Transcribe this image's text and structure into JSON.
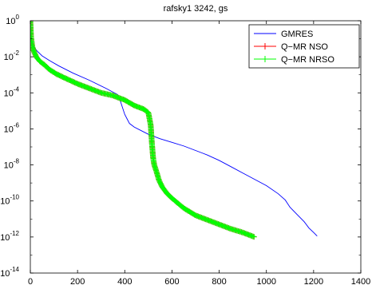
{
  "chart_data": {
    "type": "line",
    "title": "rafsky1 3242, gs",
    "xlabel": "",
    "ylabel": "",
    "xlim": [
      0,
      1400
    ],
    "ylim_log10": [
      -14,
      0
    ],
    "y_scale": "log",
    "grid": false,
    "legend_position": "top-right",
    "x_ticks": [
      0,
      200,
      400,
      600,
      800,
      1000,
      1200,
      1400
    ],
    "x_tick_labels": [
      "0",
      "200",
      "400",
      "600",
      "800",
      "1000",
      "1200",
      "1400"
    ],
    "y_ticks_log10": [
      0,
      -2,
      -4,
      -6,
      -8,
      -10,
      -12,
      -14
    ],
    "y_tick_bases": [
      "10",
      "10",
      "10",
      "10",
      "10",
      "10",
      "10",
      "10"
    ],
    "y_tick_exponents": [
      "0",
      "-2",
      "-4",
      "-6",
      "-8",
      "-10",
      "-12",
      "-14"
    ],
    "series": [
      {
        "name": "GMRES",
        "color": "#0000ff",
        "marker": "none",
        "x": [
          0,
          5,
          15,
          30,
          50,
          80,
          120,
          180,
          250,
          320,
          370,
          380,
          390,
          395,
          400,
          410,
          420,
          440,
          470,
          500,
          550,
          600,
          650,
          700,
          750,
          800,
          850,
          900,
          950,
          1000,
          1050,
          1080,
          1100,
          1130,
          1160,
          1180,
          1200,
          1215
        ],
        "log10_y": [
          0,
          -1.0,
          -1.45,
          -1.7,
          -1.95,
          -2.2,
          -2.5,
          -2.9,
          -3.3,
          -3.75,
          -4.1,
          -4.4,
          -4.8,
          -5.0,
          -5.2,
          -5.45,
          -5.7,
          -5.9,
          -6.1,
          -6.3,
          -6.55,
          -6.75,
          -6.95,
          -7.2,
          -7.45,
          -7.75,
          -8.1,
          -8.45,
          -8.8,
          -9.15,
          -9.6,
          -9.95,
          -10.35,
          -10.75,
          -11.15,
          -11.5,
          -11.75,
          -11.95
        ]
      },
      {
        "name": "Q−MR NSO",
        "color": "#ff0000",
        "marker": "plus",
        "x": [
          0,
          3,
          8,
          15,
          25,
          40,
          60,
          80,
          110,
          150,
          200,
          250,
          300,
          350,
          400,
          440,
          480,
          500,
          510,
          515,
          520,
          525,
          535,
          545,
          560,
          580,
          600,
          650,
          700,
          750,
          800,
          850,
          900,
          930,
          950
        ],
        "log10_y": [
          0,
          -0.9,
          -1.4,
          -1.7,
          -2.0,
          -2.25,
          -2.45,
          -2.7,
          -2.95,
          -3.2,
          -3.5,
          -3.75,
          -4.0,
          -4.15,
          -4.4,
          -4.7,
          -4.9,
          -5.1,
          -5.8,
          -6.8,
          -7.6,
          -8.0,
          -8.4,
          -8.85,
          -9.25,
          -9.6,
          -9.85,
          -10.4,
          -10.8,
          -11.05,
          -11.3,
          -11.55,
          -11.75,
          -11.9,
          -12.0
        ]
      },
      {
        "name": "Q−MR NRSO",
        "color": "#00ff00",
        "marker": "plus",
        "x": [
          0,
          3,
          8,
          15,
          25,
          40,
          60,
          80,
          110,
          150,
          200,
          250,
          300,
          350,
          400,
          440,
          480,
          500,
          510,
          515,
          520,
          525,
          535,
          545,
          560,
          580,
          600,
          650,
          700,
          750,
          800,
          850,
          900,
          930,
          950
        ],
        "log10_y": [
          0,
          -0.9,
          -1.4,
          -1.7,
          -2.0,
          -2.25,
          -2.45,
          -2.7,
          -2.95,
          -3.2,
          -3.5,
          -3.75,
          -4.0,
          -4.15,
          -4.4,
          -4.7,
          -4.9,
          -5.1,
          -5.8,
          -6.8,
          -7.6,
          -8.0,
          -8.4,
          -8.85,
          -9.25,
          -9.6,
          -9.85,
          -10.4,
          -10.8,
          -11.05,
          -11.3,
          -11.55,
          -11.75,
          -11.9,
          -12.0
        ]
      }
    ]
  }
}
